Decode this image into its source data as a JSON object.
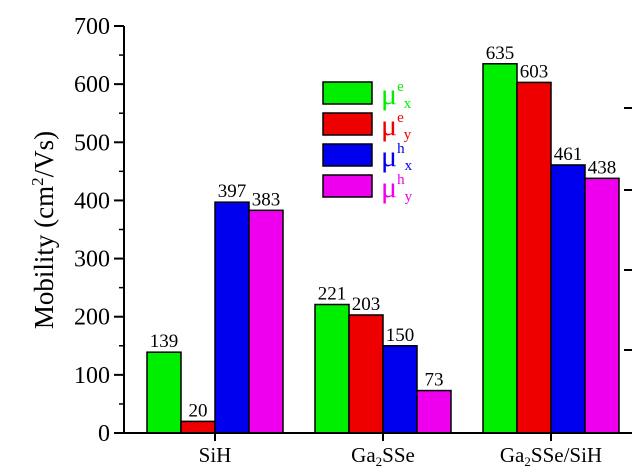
{
  "chart_data": {
    "type": "bar",
    "ylabel_main": "Mobility (cm",
    "ylabel_sup": "2",
    "ylabel_tail": "/Vs)",
    "ylim": [
      0,
      700
    ],
    "yticks": [
      "0",
      "100",
      "200",
      "300",
      "400",
      "500",
      "600",
      "700"
    ],
    "categories": [
      {
        "pre": "SiH",
        "sub": "",
        "post": ""
      },
      {
        "pre": "Ga",
        "sub": "2",
        "post": "SSe"
      },
      {
        "pre": "Ga",
        "sub": "2",
        "post": "SSe/SiH"
      }
    ],
    "series": [
      {
        "sym": "μ",
        "sup": "e",
        "sub": "x",
        "color": "#00ee00",
        "values": [
          139,
          221,
          635
        ]
      },
      {
        "sym": "μ",
        "sup": "e",
        "sub": "y",
        "color": "#ee0000",
        "values": [
          20,
          203,
          603
        ]
      },
      {
        "sym": "μ",
        "sup": "h",
        "sub": "x",
        "color": "#0000ee",
        "values": [
          397,
          150,
          461
        ]
      },
      {
        "sym": "μ",
        "sup": "h",
        "sub": "y",
        "color": "#ee00ee",
        "values": [
          383,
          73,
          438
        ]
      }
    ],
    "legend_position": "top-center"
  }
}
